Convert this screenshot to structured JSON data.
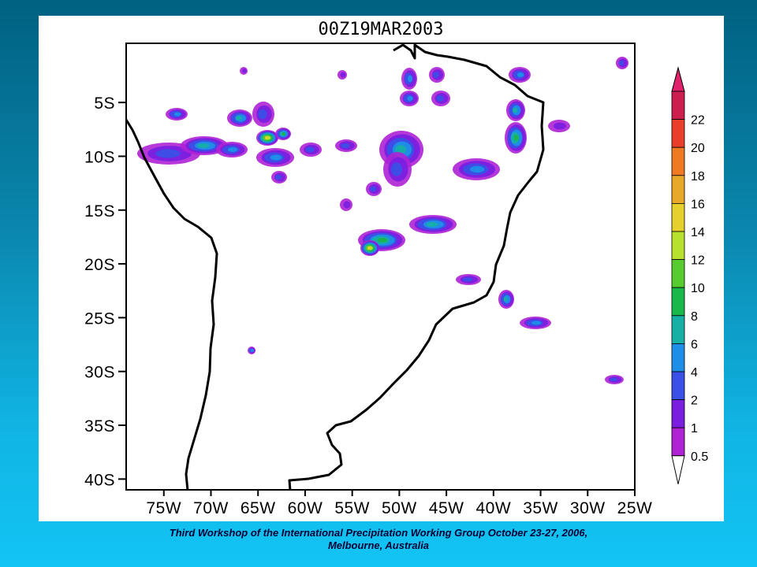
{
  "map": {
    "title": "00Z19MAR2003",
    "lat_labels": [
      "5S",
      "10S",
      "15S",
      "20S",
      "25S",
      "30S",
      "35S",
      "40S"
    ],
    "lat_values": [
      -5,
      -10,
      -15,
      -20,
      -25,
      -30,
      -35,
      -40
    ],
    "lon_labels": [
      "75W",
      "70W",
      "65W",
      "60W",
      "55W",
      "50W",
      "45W",
      "40W",
      "35W",
      "30W",
      "25W"
    ],
    "lon_values": [
      -75,
      -70,
      -65,
      -60,
      -55,
      -50,
      -45,
      -40,
      -35,
      -30,
      -25
    ],
    "extent": {
      "lon_min": -79,
      "lon_max": -25,
      "lat_min": -41,
      "lat_max": 0.5
    },
    "colorbar": {
      "labels": [
        "22",
        "20",
        "18",
        "16",
        "14",
        "12",
        "10",
        "8",
        "6",
        "4",
        "2",
        "1",
        "0.5"
      ],
      "colors": [
        "#cc1f4f",
        "#e83e2a",
        "#f07a22",
        "#e8a82a",
        "#e6d12c",
        "#b8e02e",
        "#56cc2e",
        "#18b84a",
        "#17b0a6",
        "#1e8fe8",
        "#3a50e6",
        "#7a1fe0",
        "#ae22d4"
      ]
    }
  },
  "footer": {
    "line1": "Third Workshop of the International Precipitation Working Group October 23-27, 2006,",
    "line2": "Melbourne, Australia"
  }
}
